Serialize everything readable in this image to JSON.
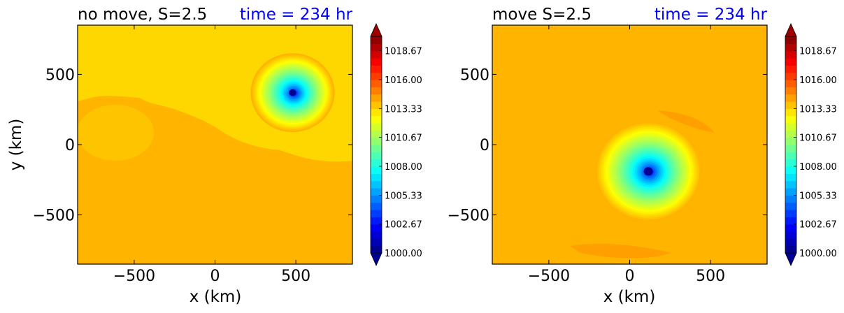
{
  "chart_data": [
    {
      "type": "heatmap",
      "title": "no move, S=2.5",
      "time_label": "time = 234 hr",
      "xlabel": "x (km)",
      "ylabel": "y (km)",
      "xlim": [
        -850,
        850
      ],
      "ylim": [
        -850,
        850
      ],
      "xticks": [
        -500,
        0,
        500
      ],
      "yticks": [
        500,
        0,
        -500
      ],
      "xtick_labels": [
        "−500",
        "0",
        "500"
      ],
      "ytick_labels": [
        "500",
        "0",
        "−500"
      ],
      "background_value": 1014.0,
      "vortex": {
        "center_x": 480,
        "center_y": 370,
        "min_value": 1000.0,
        "radius_km": 260
      },
      "colorbar": {
        "vmin": 1000.0,
        "vmax": 1020.0,
        "levels": 30,
        "tick_values": [
          1000.0,
          1002.67,
          1005.33,
          1008.0,
          1010.67,
          1013.33,
          1016.0,
          1018.67
        ],
        "tick_labels": [
          "1000.00",
          "1002.67",
          "1005.33",
          "1008.00",
          "1010.67",
          "1013.33",
          "1016.00",
          "1018.67"
        ],
        "extend": "both"
      }
    },
    {
      "type": "heatmap",
      "title": "move S=2.5",
      "time_label": "time = 234 hr",
      "xlabel": "x (km)",
      "ylabel": "",
      "xlim": [
        -850,
        850
      ],
      "ylim": [
        -850,
        850
      ],
      "xticks": [
        -500,
        0,
        500
      ],
      "yticks": [
        500,
        0,
        -500
      ],
      "xtick_labels": [
        "−500",
        "0",
        "500"
      ],
      "ytick_labels": [
        "500",
        "0",
        "−500"
      ],
      "background_value": 1014.0,
      "vortex": {
        "center_x": 115,
        "center_y": -190,
        "min_value": 1000.0,
        "radius_km": 330
      },
      "colorbar": {
        "vmin": 1000.0,
        "vmax": 1020.0,
        "levels": 30,
        "tick_values": [
          1000.0,
          1002.67,
          1005.33,
          1008.0,
          1010.67,
          1013.33,
          1016.0,
          1018.67
        ],
        "tick_labels": [
          "1000.00",
          "1002.67",
          "1005.33",
          "1008.00",
          "1010.67",
          "1013.33",
          "1016.00",
          "1018.67"
        ],
        "extend": "both"
      }
    }
  ],
  "colors": {
    "title_time": "#0000ff",
    "title": "#000000",
    "background_field": "#ffb400",
    "upper_field": "#ffd700"
  }
}
